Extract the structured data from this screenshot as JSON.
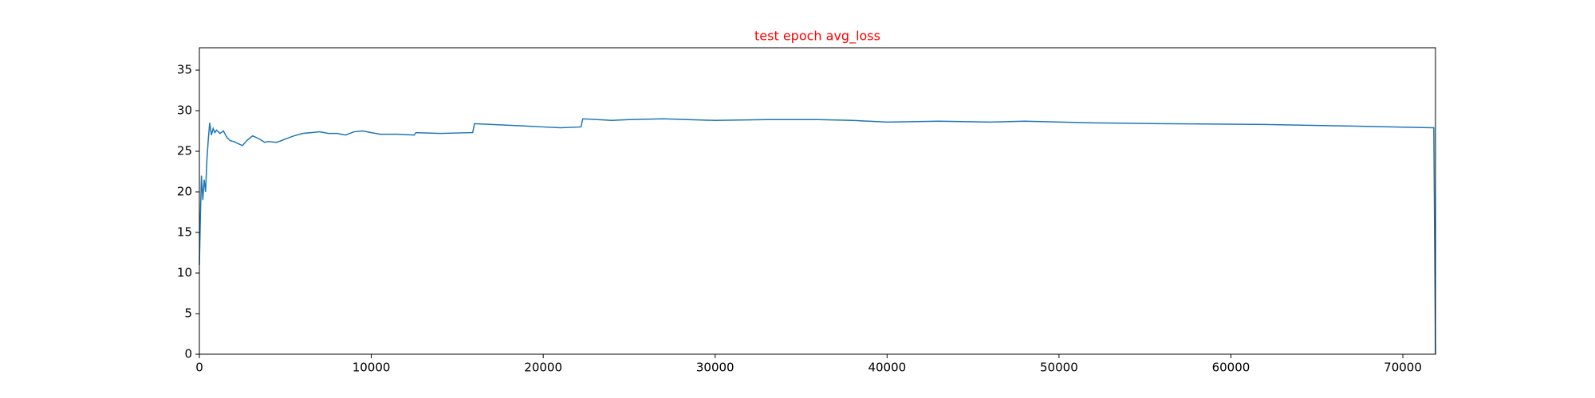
{
  "chart_data": {
    "type": "line",
    "title": "test epoch avg_loss",
    "x": [
      0,
      60,
      120,
      200,
      280,
      360,
      440,
      520,
      600,
      700,
      800,
      900,
      1000,
      1200,
      1400,
      1600,
      1800,
      2000,
      2200,
      2500,
      2800,
      3100,
      3500,
      3800,
      4000,
      4500,
      5000,
      5500,
      6000,
      6500,
      7000,
      7500,
      8000,
      8500,
      9000,
      9500,
      10000,
      10500,
      11500,
      12500,
      12600,
      14000,
      15900,
      16000,
      17000,
      18000,
      19000,
      20000,
      21000,
      22200,
      22300,
      24000,
      25000,
      27000,
      30000,
      33000,
      36000,
      38000,
      40000,
      43000,
      46000,
      48000,
      52000,
      56000,
      62000,
      67000,
      71800,
      71900
    ],
    "series": [
      {
        "name": "avg_loss",
        "color": "#1f77b4",
        "values": [
          11,
          17,
          22,
          19,
          21.5,
          20,
          24,
          26.5,
          28.5,
          27,
          27.8,
          27.3,
          27.6,
          27.2,
          27.5,
          26.7,
          26.3,
          26.2,
          26,
          25.7,
          26.4,
          26.9,
          26.5,
          26.1,
          26.2,
          26.1,
          26.5,
          26.9,
          27.2,
          27.3,
          27.4,
          27.2,
          27.2,
          27,
          27.4,
          27.5,
          27.3,
          27.1,
          27.1,
          27,
          27.3,
          27.2,
          27.3,
          28.4,
          28.3,
          28.2,
          28.1,
          28,
          27.9,
          28,
          29,
          28.8,
          28.9,
          29,
          28.8,
          28.9,
          28.9,
          28.8,
          28.6,
          28.7,
          28.6,
          28.7,
          28.5,
          28.4,
          28.3,
          28.1,
          27.9,
          0
        ]
      }
    ],
    "xlim": [
      0,
      71900
    ],
    "ylim": [
      0,
      37.75
    ],
    "xticks": [
      0,
      10000,
      20000,
      30000,
      40000,
      50000,
      60000,
      70000
    ],
    "yticks": [
      0,
      5,
      10,
      15,
      20,
      25,
      30,
      35
    ]
  }
}
